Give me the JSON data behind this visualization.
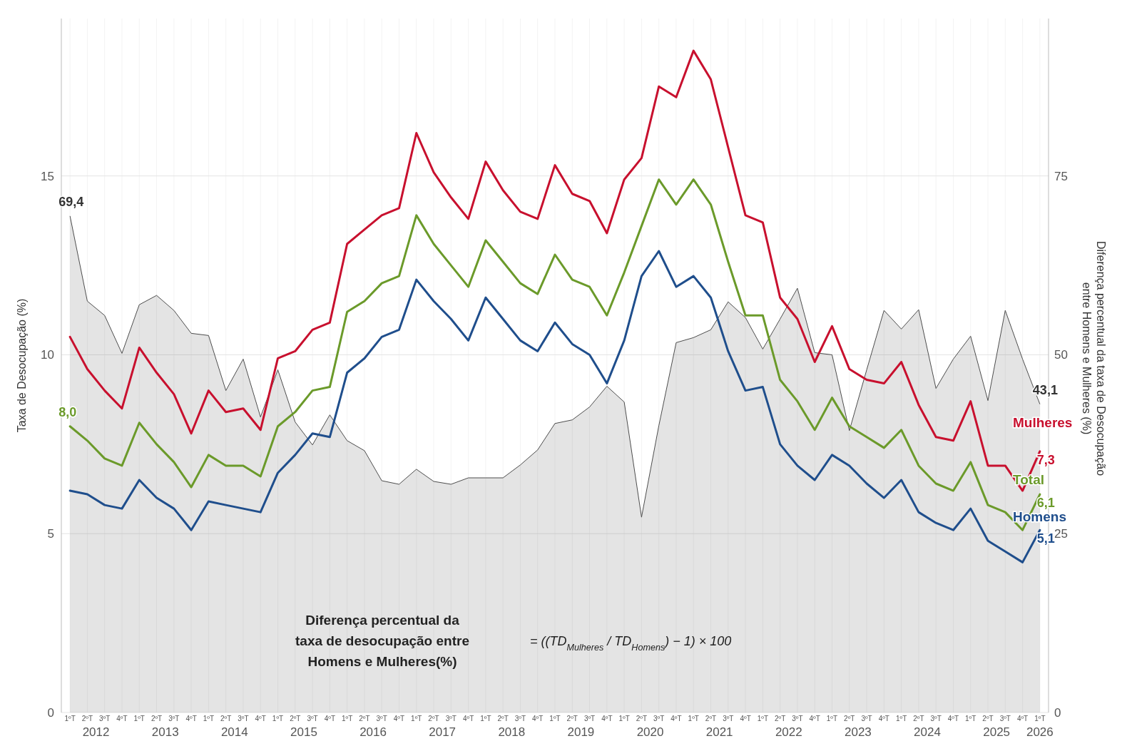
{
  "chart_data": {
    "type": "line",
    "ylabel": "Taxa de Desocupação (%)",
    "y2label": "Diferença percentual da taxa de Desocupação entre Homens e Mulheres (%)",
    "categories": [
      "1ºT",
      "2ºT",
      "3ºT",
      "4ºT",
      "1ºT",
      "2ºT",
      "3ºT",
      "4ºT",
      "1ºT",
      "2ºT",
      "3ºT",
      "4ºT",
      "1ºT",
      "2ºT",
      "3ºT",
      "4ºT",
      "1ºT",
      "2ºT",
      "3ºT",
      "4ºT",
      "1ºT",
      "2ºT",
      "3ºT",
      "4ºT",
      "1ºT",
      "2ºT",
      "3ºT",
      "4ºT",
      "1ºT",
      "2ºT",
      "3ºT",
      "4ºT",
      "1ºT",
      "2ºT",
      "3ºT",
      "4ºT",
      "1ºT",
      "2ºT",
      "3ºT",
      "4ºT",
      "1ºT",
      "2ºT",
      "3ºT",
      "4ºT",
      "1ºT",
      "2ºT",
      "3ºT",
      "4ºT",
      "1ºT",
      "2ºT",
      "3ºT",
      "4ºT",
      "1ºT",
      "2ºT",
      "3ºT",
      "4ºT",
      "1ºT"
    ],
    "series": [
      {
        "type": "area",
        "axis": "y2",
        "color": "#4d4d4d",
        "values": [
          69.4,
          57.5,
          55.5,
          50.2,
          57,
          58.3,
          56.2,
          53,
          52.7,
          45,
          49.4,
          41.3,
          47.9,
          40.6,
          37.4,
          41.6,
          38,
          36.6,
          32.4,
          31.9,
          34,
          32.3,
          31.9,
          32.8,
          32.8,
          32.8,
          34.6,
          36.7,
          40.4,
          40.9,
          42.7,
          45.6,
          43.4,
          27.3,
          40.1,
          51.7,
          52.4,
          53.5,
          57.4,
          55.2,
          50.8,
          55,
          59.3,
          50.3,
          50,
          39.4,
          47.9,
          56.2,
          53.6,
          56.3,
          45.3,
          49.4,
          52.6,
          43.6,
          56.2,
          49.4,
          43.1
        ],
        "value_labels": [
          "69,4",
          null,
          null,
          null,
          null,
          null,
          null,
          null,
          null,
          null,
          null,
          null,
          null,
          null,
          null,
          null,
          null,
          null,
          null,
          null,
          null,
          null,
          null,
          null,
          null,
          null,
          null,
          null,
          null,
          null,
          null,
          null,
          null,
          null,
          null,
          null,
          null,
          null,
          null,
          null,
          null,
          null,
          null,
          null,
          null,
          null,
          null,
          null,
          null,
          null,
          null,
          null,
          null,
          null,
          null,
          null,
          "43,1"
        ]
      },
      {
        "name": "Mulheres",
        "color": "#c8102e",
        "values": [
          10.5,
          9.6,
          9.0,
          8.5,
          10.2,
          9.5,
          8.9,
          7.8,
          9.0,
          8.4,
          8.5,
          7.9,
          9.9,
          10.1,
          10.7,
          10.9,
          13.1,
          13.5,
          13.9,
          14.1,
          16.2,
          15.1,
          14.4,
          13.8,
          15.4,
          14.6,
          14.0,
          13.8,
          15.3,
          14.5,
          14.3,
          13.4,
          14.9,
          15.5,
          17.5,
          17.2,
          18.5,
          17.7,
          15.8,
          13.9,
          13.7,
          11.6,
          11.0,
          9.8,
          10.8,
          9.6,
          9.3,
          9.2,
          9.8,
          8.6,
          7.7,
          7.6,
          8.7,
          6.9,
          6.9,
          6.2,
          7.3
        ],
        "value_labels": [
          null,
          null,
          null,
          null,
          null,
          null,
          null,
          null,
          null,
          null,
          null,
          null,
          null,
          null,
          null,
          null,
          null,
          null,
          null,
          null,
          null,
          null,
          null,
          null,
          null,
          null,
          null,
          null,
          null,
          null,
          null,
          null,
          null,
          null,
          null,
          null,
          null,
          null,
          null,
          null,
          null,
          null,
          null,
          null,
          null,
          null,
          null,
          null,
          null,
          null,
          null,
          null,
          null,
          null,
          null,
          null,
          "7,3"
        ]
      },
      {
        "name": "Total",
        "color": "#6b9a2a",
        "values": [
          8.0,
          7.6,
          7.1,
          6.9,
          8.1,
          7.5,
          7.0,
          6.3,
          7.2,
          6.9,
          6.9,
          6.6,
          8.0,
          8.4,
          9.0,
          9.1,
          11.2,
          11.5,
          12.0,
          12.2,
          13.9,
          13.1,
          12.5,
          11.9,
          13.2,
          12.6,
          12.0,
          11.7,
          12.8,
          12.1,
          11.9,
          11.1,
          12.3,
          13.6,
          14.9,
          14.2,
          14.9,
          14.2,
          12.6,
          11.1,
          11.1,
          9.3,
          8.7,
          7.9,
          8.8,
          8.0,
          7.7,
          7.4,
          7.9,
          6.9,
          6.4,
          6.2,
          7.0,
          5.8,
          5.6,
          5.1,
          6.1
        ],
        "value_labels": [
          "8,0",
          null,
          null,
          null,
          null,
          null,
          null,
          null,
          null,
          null,
          null,
          null,
          null,
          null,
          null,
          null,
          null,
          null,
          null,
          null,
          null,
          null,
          null,
          null,
          null,
          null,
          null,
          null,
          null,
          null,
          null,
          null,
          null,
          null,
          null,
          null,
          null,
          null,
          null,
          null,
          null,
          null,
          null,
          null,
          null,
          null,
          null,
          null,
          null,
          null,
          null,
          null,
          null,
          null,
          null,
          null,
          "6,1"
        ]
      },
      {
        "name": "Homens",
        "color": "#1f4e8c",
        "values": [
          6.2,
          6.1,
          5.8,
          5.7,
          6.5,
          6.0,
          5.7,
          5.1,
          5.9,
          5.8,
          5.7,
          5.6,
          6.7,
          7.2,
          7.8,
          7.7,
          9.5,
          9.9,
          10.5,
          10.7,
          12.1,
          11.5,
          11.0,
          10.4,
          11.6,
          11.0,
          10.4,
          10.1,
          10.9,
          10.3,
          10.0,
          9.2,
          10.4,
          12.2,
          12.9,
          11.9,
          12.2,
          11.6,
          10.1,
          9.0,
          9.1,
          7.5,
          6.9,
          6.5,
          7.2,
          6.9,
          6.4,
          6.0,
          6.5,
          5.6,
          5.3,
          5.1,
          5.7,
          4.8,
          4.5,
          4.2,
          5.1
        ],
        "value_labels": [
          null,
          null,
          null,
          null,
          null,
          null,
          null,
          null,
          null,
          null,
          null,
          null,
          null,
          null,
          null,
          null,
          null,
          null,
          null,
          null,
          null,
          null,
          null,
          null,
          null,
          null,
          null,
          null,
          null,
          null,
          null,
          null,
          null,
          null,
          null,
          null,
          null,
          null,
          null,
          null,
          null,
          null,
          null,
          null,
          null,
          null,
          null,
          null,
          null,
          null,
          null,
          null,
          null,
          null,
          null,
          null,
          "5,1"
        ]
      }
    ],
    "ylim": [
      0,
      19.4
    ],
    "yticks": [
      0,
      5,
      10,
      15
    ],
    "y2lim": [
      0,
      97
    ],
    "y2ticks": [
      0,
      25,
      50,
      75
    ],
    "grid": true,
    "marker": "none",
    "line_style": "solid",
    "annotations": [
      "2012",
      "2013",
      "2014",
      "2015",
      "2016",
      "2017",
      "2018",
      "2019",
      "2020",
      "2021",
      "2022",
      "2023",
      "2024",
      "2025",
      "2026",
      "Diferença percentual da taxa de desocupação entre Homens e Mulheres(%)",
      "= ((TD$_{Mulheres}$ / TD$_{Homens}$) − 1) × 100"
    ]
  }
}
